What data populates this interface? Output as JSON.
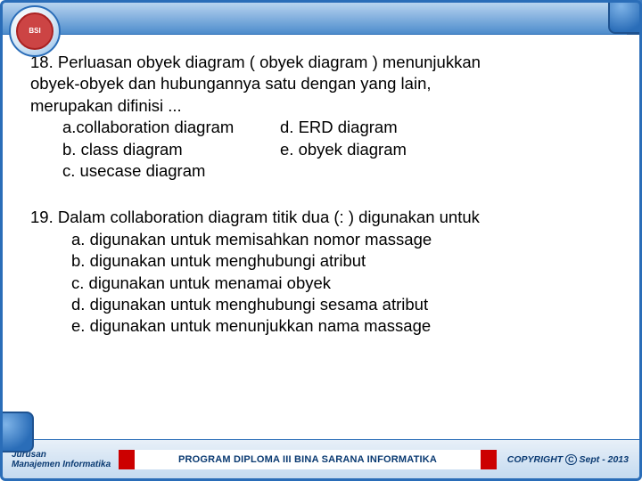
{
  "colors": {
    "frame": "#2a6db8",
    "topbar_gradient": [
      "#b8d4f0",
      "#4d8ccc"
    ],
    "footer_gradient": [
      "#e8f0f8",
      "#c4daf0"
    ],
    "text": "#000000",
    "footer_text": "#0a3a72",
    "accent_red": "#cc0000",
    "background": "#ffffff"
  },
  "typography": {
    "body_fontsize_pt": 14,
    "footer_fontsize_pt": 8,
    "font_family": "Arial"
  },
  "logo": {
    "label": "BSI"
  },
  "questions": [
    {
      "number": "18.",
      "text": "Perluasan obyek diagram ( obyek diagram ) menunjukkan\nobyek-obyek dan hubungannya satu dengan yang lain,\nmerupakan difinisi ...",
      "layout": "two-column",
      "options_left": [
        "a.collaboration diagram",
        "b. class diagram",
        "c. usecase diagram"
      ],
      "options_right": [
        "d. ERD diagram",
        "e. obyek diagram"
      ]
    },
    {
      "number": "19.",
      "text": "Dalam collaboration diagram titik dua (: ) digunakan untuk",
      "layout": "one-column",
      "options": [
        "a. digunakan untuk memisahkan nomor massage",
        "b. digunakan untuk menghubungi atribut",
        "c. digunakan untuk menamai obyek",
        "d. digunakan untuk menghubungi sesama atribut",
        "e. digunakan untuk menunjukkan nama massage"
      ]
    }
  ],
  "footer": {
    "left_line1": "Jurusan",
    "left_line2": "Manajemen Informatika",
    "center": "PROGRAM DIPLOMA III BINA SARANA INFORMATIKA",
    "right_prefix": "COPYRIGHT",
    "right_suffix": "Sept - 2013"
  }
}
